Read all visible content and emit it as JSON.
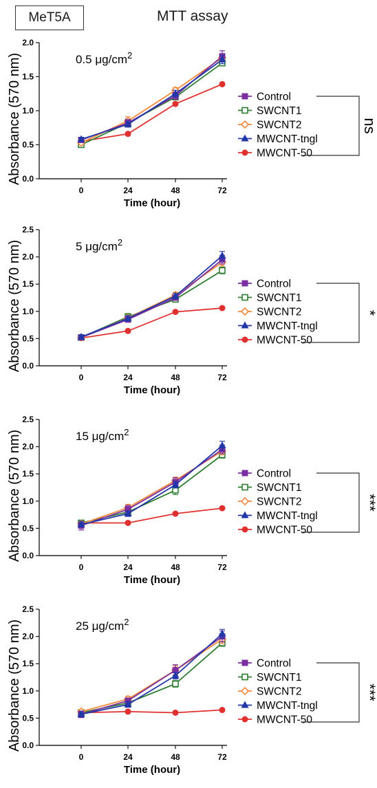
{
  "header": {
    "cell_line": "MeT5A",
    "assay_title": "MTT assay"
  },
  "colors": {
    "Control": "#7b2fa0",
    "SWCNT1": "#2e7d32",
    "SWCNT2": "#f08a3c",
    "MWCNT-tngl": "#2137a8",
    "MWCNT-50": "#e03030"
  },
  "markers": {
    "Control": "square-filled",
    "SWCNT1": "square-open",
    "SWCNT2": "diamond-open",
    "MWCNT-tngl": "triangle-filled",
    "MWCNT-50": "circle-filled"
  },
  "chart_data": [
    {
      "type": "line",
      "title": "0.5 μg/cm2",
      "xlabel": "Time (hour)",
      "ylabel": "Absorbance (570 nm)",
      "x": [
        0,
        24,
        48,
        72
      ],
      "xticks": [
        "0",
        "24",
        "48",
        "72"
      ],
      "ylim": [
        0,
        2.0
      ],
      "yticks": [
        "0.0",
        "0.5",
        "1.0",
        "1.5",
        "2.0"
      ],
      "significance": "ns",
      "series": [
        {
          "name": "Control",
          "values": [
            0.57,
            0.82,
            1.22,
            1.8
          ],
          "errors": [
            0.03,
            0.05,
            0.05,
            0.08
          ]
        },
        {
          "name": "SWCNT1",
          "values": [
            0.5,
            0.82,
            1.2,
            1.7
          ],
          "errors": [
            0.04,
            0.06,
            0.04,
            0.04
          ]
        },
        {
          "name": "SWCNT2",
          "values": [
            0.53,
            0.85,
            1.3,
            1.78
          ],
          "errors": [
            0.03,
            0.06,
            0.04,
            0.05
          ]
        },
        {
          "name": "MWCNT-tngl",
          "values": [
            0.58,
            0.8,
            1.25,
            1.75
          ],
          "errors": [
            0.03,
            0.04,
            0.05,
            0.06
          ]
        },
        {
          "name": "MWCNT-50",
          "values": [
            0.55,
            0.66,
            1.1,
            1.39
          ],
          "errors": [
            0.02,
            0.02,
            0.02,
            0.02
          ]
        }
      ]
    },
    {
      "type": "line",
      "title": "5 μg/cm2",
      "xlabel": "Time (hour)",
      "ylabel": "Absorbance (570 nm)",
      "x": [
        0,
        24,
        48,
        72
      ],
      "xticks": [
        "0",
        "24",
        "48",
        "72"
      ],
      "ylim": [
        0,
        2.5
      ],
      "yticks": [
        "0.0",
        "0.5",
        "1.0",
        "1.5",
        "2.0",
        "2.5"
      ],
      "significance": "*",
      "series": [
        {
          "name": "Control",
          "values": [
            0.52,
            0.85,
            1.25,
            1.95
          ],
          "errors": [
            0.03,
            0.05,
            0.05,
            0.08
          ]
        },
        {
          "name": "SWCNT1",
          "values": [
            0.52,
            0.9,
            1.22,
            1.75
          ],
          "errors": [
            0.03,
            0.06,
            0.04,
            0.06
          ]
        },
        {
          "name": "SWCNT2",
          "values": [
            0.52,
            0.88,
            1.3,
            1.9
          ],
          "errors": [
            0.03,
            0.05,
            0.05,
            0.07
          ]
        },
        {
          "name": "MWCNT-tngl",
          "values": [
            0.53,
            0.87,
            1.28,
            2.02
          ],
          "errors": [
            0.03,
            0.05,
            0.05,
            0.08
          ]
        },
        {
          "name": "MWCNT-50",
          "values": [
            0.51,
            0.64,
            0.99,
            1.06
          ],
          "errors": [
            0.02,
            0.02,
            0.02,
            0.02
          ]
        }
      ]
    },
    {
      "type": "line",
      "title": "15 μg/cm2",
      "xlabel": "Time (hour)",
      "ylabel": "Absorbance (570 nm)",
      "x": [
        0,
        24,
        48,
        72
      ],
      "xticks": [
        "0",
        "24",
        "48",
        "72"
      ],
      "ylim": [
        0,
        2.5
      ],
      "yticks": [
        "0.0",
        "0.5",
        "1.0",
        "1.5",
        "2.0",
        "2.5"
      ],
      "significance": "***",
      "series": [
        {
          "name": "Control",
          "values": [
            0.55,
            0.85,
            1.35,
            1.95
          ],
          "errors": [
            0.08,
            0.07,
            0.08,
            0.08
          ]
        },
        {
          "name": "SWCNT1",
          "values": [
            0.6,
            0.8,
            1.2,
            1.85
          ],
          "errors": [
            0.04,
            0.05,
            0.08,
            0.06
          ]
        },
        {
          "name": "SWCNT2",
          "values": [
            0.58,
            0.88,
            1.38,
            1.92
          ],
          "errors": [
            0.04,
            0.06,
            0.06,
            0.07
          ]
        },
        {
          "name": "MWCNT-tngl",
          "values": [
            0.57,
            0.77,
            1.3,
            2.02
          ],
          "errors": [
            0.04,
            0.05,
            0.06,
            0.08
          ]
        },
        {
          "name": "MWCNT-50",
          "values": [
            0.6,
            0.6,
            0.77,
            0.87
          ],
          "errors": [
            0.02,
            0.02,
            0.02,
            0.02
          ]
        }
      ]
    },
    {
      "type": "line",
      "title": "25 μg/cm2",
      "xlabel": "Time (hour)",
      "ylabel": "Absorbance (570 nm)",
      "x": [
        0,
        24,
        48,
        72
      ],
      "xticks": [
        "0",
        "24",
        "48",
        "72"
      ],
      "ylim": [
        0,
        2.5
      ],
      "yticks": [
        "0.0",
        "0.5",
        "1.0",
        "1.5",
        "2.0",
        "2.5"
      ],
      "significance": "***",
      "series": [
        {
          "name": "Control",
          "values": [
            0.57,
            0.82,
            1.38,
            2.0
          ],
          "errors": [
            0.06,
            0.05,
            0.1,
            0.1
          ]
        },
        {
          "name": "SWCNT1",
          "values": [
            0.6,
            0.78,
            1.13,
            1.88
          ],
          "errors": [
            0.04,
            0.05,
            0.06,
            0.06
          ]
        },
        {
          "name": "SWCNT2",
          "values": [
            0.62,
            0.85,
            1.38,
            1.95
          ],
          "errors": [
            0.04,
            0.05,
            0.08,
            0.08
          ]
        },
        {
          "name": "MWCNT-tngl",
          "values": [
            0.57,
            0.75,
            1.28,
            2.05
          ],
          "errors": [
            0.04,
            0.05,
            0.06,
            0.08
          ]
        },
        {
          "name": "MWCNT-50",
          "values": [
            0.6,
            0.62,
            0.6,
            0.65
          ],
          "errors": [
            0.02,
            0.02,
            0.02,
            0.02
          ]
        }
      ]
    }
  ]
}
